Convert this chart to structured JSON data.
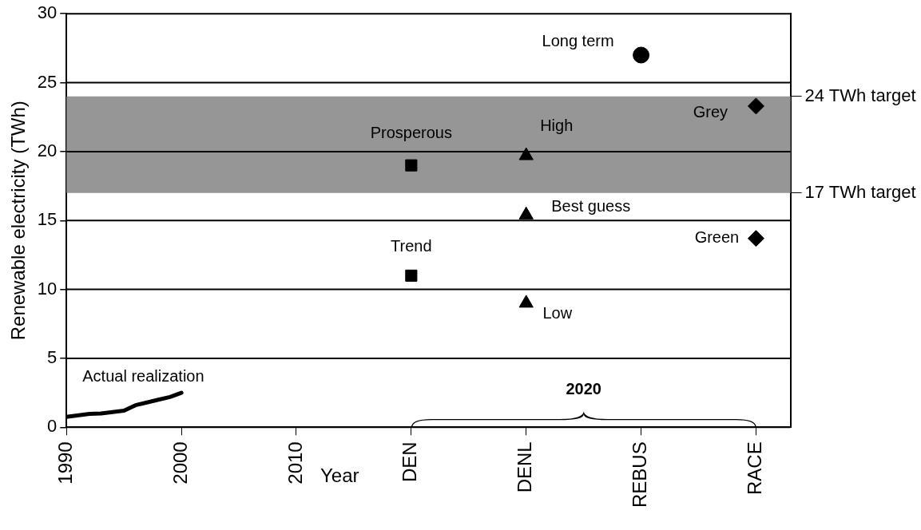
{
  "chart_data": {
    "type": "scatter",
    "xlabel": "Year",
    "ylabel": "Renewable electricity (TWh)",
    "xlim": [
      1990,
      2053
    ],
    "xticks": [
      1990,
      2000,
      2010,
      {
        "value": 2020,
        "label": "DEN"
      },
      {
        "value": 2030,
        "label": "DENL"
      },
      {
        "value": 2040,
        "label": "REBUS"
      },
      {
        "value": 2050,
        "label": "RACE"
      }
    ],
    "ylim": [
      0,
      30
    ],
    "yticks": [
      0,
      5,
      10,
      15,
      20,
      25,
      30
    ],
    "y2lim": [
      0,
      30
    ],
    "y2ticks": [
      {
        "value": 24,
        "label": "24 TWh target"
      },
      {
        "value": 17,
        "label": "17 TWh target"
      }
    ],
    "grid": "y",
    "legend": false,
    "bands": [
      {
        "axis": "y",
        "from": 17,
        "to": 24,
        "color": "#969696"
      }
    ],
    "series": [
      {
        "name": "Actual realization",
        "type": "line",
        "color": "#000000",
        "marker": "none",
        "line_style": "solid",
        "x": [
          1990,
          1992,
          1993,
          1995,
          1996,
          1998,
          1999,
          2000
        ],
        "values": [
          0.75,
          0.97,
          1.0,
          1.2,
          1.6,
          2.0,
          2.2,
          2.5
        ]
      },
      {
        "color": "#000000",
        "marker": "square",
        "x": [
          2020,
          2020
        ],
        "values": [
          19,
          11
        ]
      },
      {
        "color": "#000000",
        "marker": "triangle",
        "x": [
          2030,
          2030,
          2030
        ],
        "values": [
          19.7,
          15.4,
          9
        ]
      },
      {
        "color": "#000000",
        "marker": "circle",
        "x": [
          2040
        ],
        "values": [
          27
        ]
      },
      {
        "color": "#000000",
        "marker": "diamond",
        "x": [
          2050,
          2050
        ],
        "values": [
          23.3,
          13.7
        ]
      }
    ],
    "annotations": [
      {
        "text": "Prosperous",
        "x": 2020,
        "y": 19
      },
      {
        "text": "Trend",
        "x": 2020,
        "y": 11
      },
      {
        "text": "High",
        "x": 2030,
        "y": 19.7
      },
      {
        "text": "Best guess",
        "x": 2030,
        "y": 15.4
      },
      {
        "text": "Low",
        "x": 2030,
        "y": 9
      },
      {
        "text": "Long term",
        "x": 2040,
        "y": 27
      },
      {
        "text": "Grey",
        "x": 2050,
        "y": 23.3
      },
      {
        "text": "Green",
        "x": 2050,
        "y": 13.7
      },
      "2020"
    ]
  }
}
